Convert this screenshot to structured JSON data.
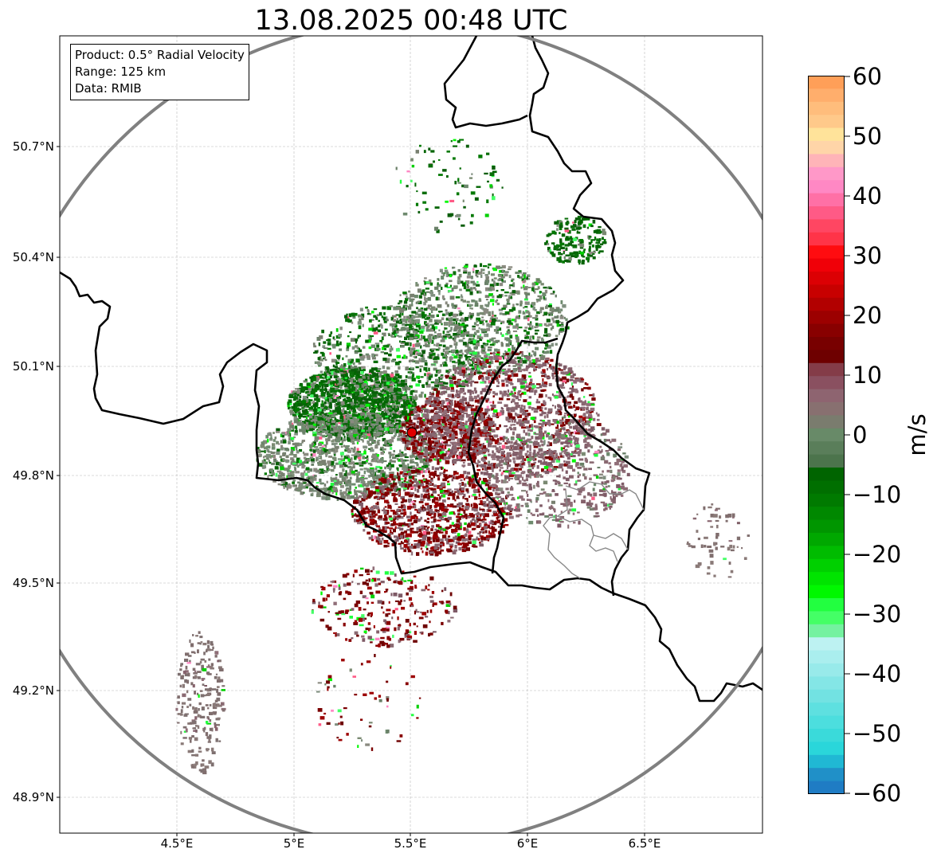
{
  "title": "13.08.2025 00:48 UTC",
  "info_box": {
    "product": "Product: 0.5° Radial Velocity",
    "range": "Range: 125 km",
    "data": "Data: RMIB"
  },
  "axes": {
    "latitude_ticks": [
      "50.7°N",
      "50.4°N",
      "50.1°N",
      "49.8°N",
      "49.5°N",
      "49.2°N",
      "48.9°N"
    ],
    "longitude_ticks": [
      "4.5°E",
      "5°E",
      "5.5°E",
      "6°E",
      "6.5°E"
    ],
    "lat_range": [
      48.8,
      50.99
    ],
    "lon_range": [
      4.0,
      7.0
    ]
  },
  "radar_site": {
    "lon": 5.505,
    "lat": 49.915
  },
  "colorbar": {
    "unit": "m/s",
    "tick_labels": [
      "60",
      "50",
      "40",
      "30",
      "20",
      "10",
      "0",
      "−10",
      "−20",
      "−30",
      "−40",
      "−50",
      "−60"
    ],
    "vmin": -60,
    "vmax": 60
  },
  "colors": {
    "range_ring": "#808080",
    "border": "#000000",
    "site_marker": "#e00000"
  }
}
